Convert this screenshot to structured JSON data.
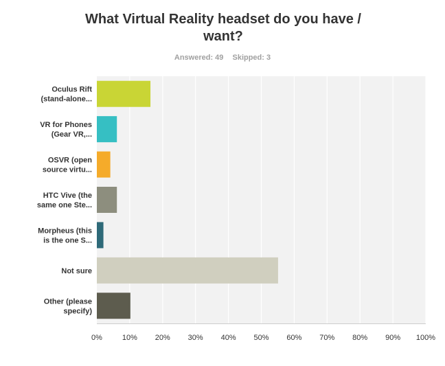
{
  "title": "What Virtual Reality headset do you have / want?",
  "answered_label": "Answered: 49",
  "skipped_label": "Skipped: 3",
  "chart_data": {
    "type": "bar",
    "orientation": "horizontal",
    "title": "What Virtual Reality headset do you have / want?",
    "xlabel": "",
    "ylabel": "",
    "xlim": [
      0,
      100
    ],
    "grid": true,
    "categories": [
      [
        "Oculus Rift",
        "(stand-alone..."
      ],
      [
        "VR for Phones",
        "(Gear VR,..."
      ],
      [
        "OSVR (open",
        "source virtu..."
      ],
      [
        "HTC Vive (the",
        "same one Ste..."
      ],
      [
        "Morpheus (this",
        "is the one S..."
      ],
      [
        "Not sure"
      ],
      [
        "Other (please",
        "specify)"
      ]
    ],
    "values": [
      16.3,
      6.1,
      4.1,
      6.1,
      2.0,
      55.1,
      10.2
    ],
    "colors": [
      "#c9d535",
      "#36bfc3",
      "#f5ab2a",
      "#8d8e7e",
      "#2f6a79",
      "#d0cfbf",
      "#5d5c4e"
    ],
    "xticks": [
      "0%",
      "10%",
      "20%",
      "30%",
      "40%",
      "50%",
      "60%",
      "70%",
      "80%",
      "90%",
      "100%"
    ]
  }
}
